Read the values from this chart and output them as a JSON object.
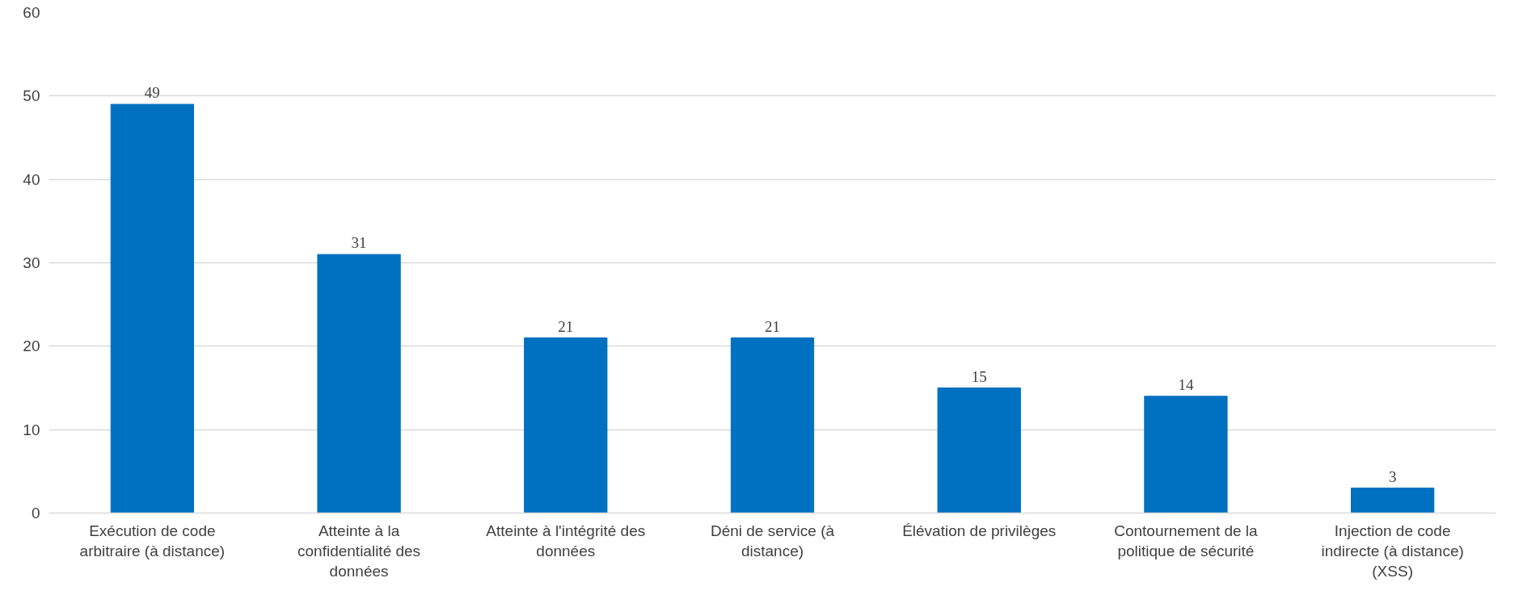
{
  "chart_data": {
    "type": "bar",
    "categories": [
      "Exécution de code arbitraire (à distance)",
      "Atteinte à la confidentialité des données",
      "Atteinte à l'intégrité des données",
      "Déni de service (à distance)",
      "Élévation de privilèges",
      "Contournement de la politique de sécurité",
      "Injection de code indirecte (à distance) (XSS)"
    ],
    "values": [
      49,
      31,
      21,
      21,
      15,
      14,
      3
    ],
    "color": "#0070c0",
    "ylim": [
      0,
      60
    ],
    "yticks": [
      0,
      10,
      20,
      30,
      40,
      50,
      60
    ],
    "grid": "y",
    "data_labels": true
  }
}
